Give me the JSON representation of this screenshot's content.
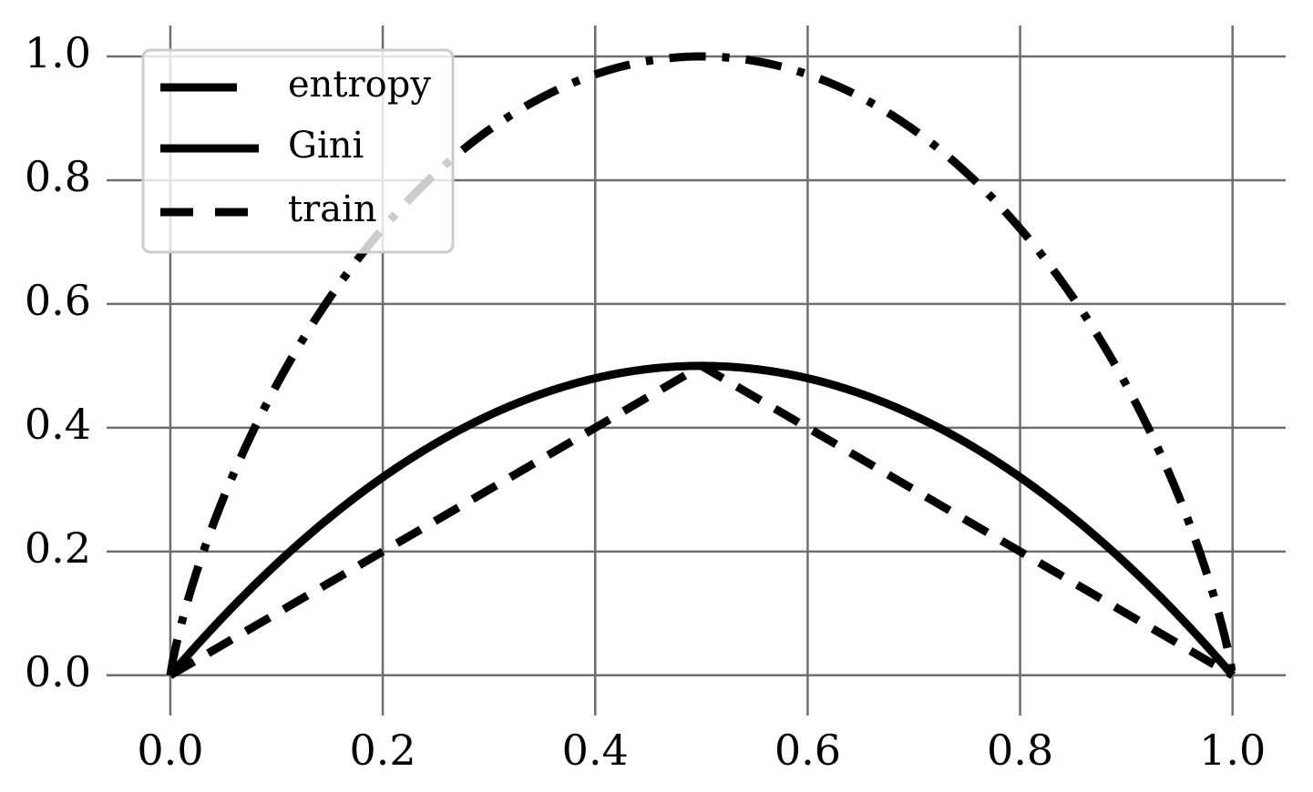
{
  "chart_data": {
    "type": "line",
    "title": "",
    "xlabel": "",
    "ylabel": "",
    "xlim": [
      -0.06,
      1.05
    ],
    "ylim": [
      -0.065,
      1.05
    ],
    "grid": true,
    "legend_position": "top-left",
    "x_ticks": [
      "0.0",
      "0.2",
      "0.4",
      "0.6",
      "0.8",
      "1.0"
    ],
    "y_ticks": [
      "0.0",
      "0.2",
      "0.4",
      "0.6",
      "0.8",
      "1.0"
    ],
    "x": [
      0.0,
      0.01,
      0.05,
      0.1,
      0.15,
      0.2,
      0.25,
      0.3,
      0.35,
      0.4,
      0.45,
      0.5,
      0.55,
      0.6,
      0.65,
      0.7,
      0.75,
      0.8,
      0.85,
      0.9,
      0.95,
      0.99,
      1.0
    ],
    "series": [
      {
        "name": "entropy",
        "style": "dashdot",
        "values": [
          0.0,
          0.081,
          0.286,
          0.469,
          0.61,
          0.722,
          0.811,
          0.881,
          0.934,
          0.971,
          0.993,
          1.0,
          0.993,
          0.971,
          0.934,
          0.881,
          0.811,
          0.722,
          0.61,
          0.469,
          0.286,
          0.081,
          0.0
        ]
      },
      {
        "name": "Gini",
        "style": "solid",
        "values": [
          0.0,
          0.0198,
          0.095,
          0.18,
          0.255,
          0.32,
          0.375,
          0.42,
          0.455,
          0.48,
          0.495,
          0.5,
          0.495,
          0.48,
          0.455,
          0.42,
          0.375,
          0.32,
          0.255,
          0.18,
          0.095,
          0.0198,
          0.0
        ]
      },
      {
        "name": "train",
        "style": "dashed",
        "values": [
          0.0,
          0.01,
          0.05,
          0.1,
          0.15,
          0.2,
          0.25,
          0.3,
          0.35,
          0.4,
          0.45,
          0.5,
          0.45,
          0.4,
          0.35,
          0.3,
          0.25,
          0.2,
          0.15,
          0.1,
          0.05,
          0.01,
          0.0
        ]
      }
    ]
  }
}
